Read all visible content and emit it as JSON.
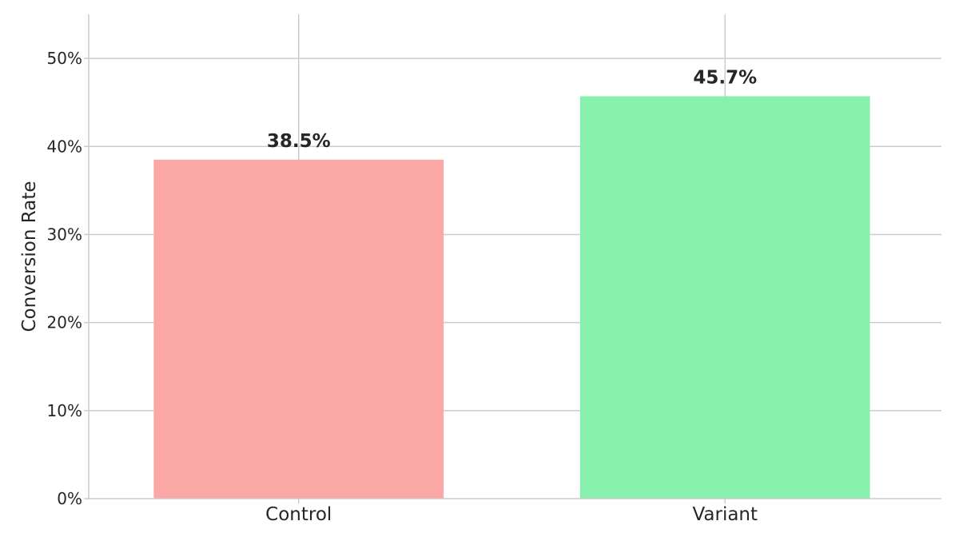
{
  "chart_data": {
    "type": "bar",
    "categories": [
      "Control",
      "Variant"
    ],
    "values": [
      38.5,
      45.7
    ],
    "value_labels": [
      "38.5%",
      "45.7%"
    ],
    "colors": [
      "#faa7a5",
      "#87f0ac"
    ],
    "title": "",
    "xlabel": "",
    "ylabel": "Conversion Rate",
    "ylim": [
      0,
      55
    ],
    "yticks": [
      0,
      10,
      20,
      30,
      40,
      50
    ],
    "ytick_labels": [
      "0%",
      "10%",
      "20%",
      "30%",
      "40%",
      "50%"
    ],
    "grid": true,
    "legend": false
  }
}
